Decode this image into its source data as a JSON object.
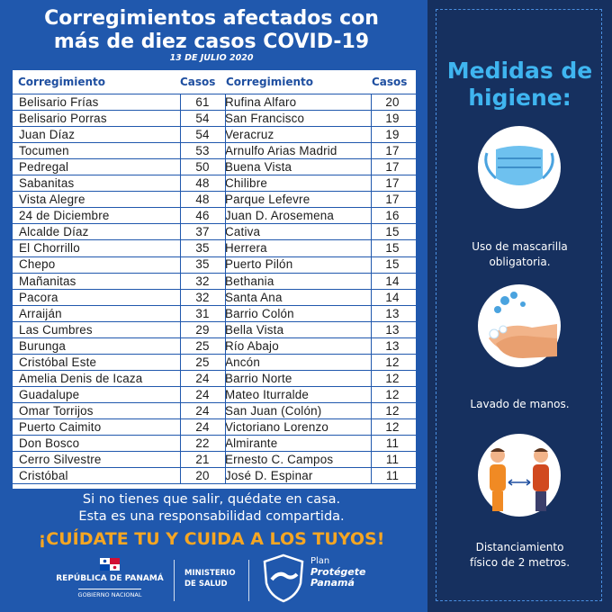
{
  "header": {
    "title_line1": "Corregimientos afectados con",
    "title_line2": "más de diez casos COVID-19",
    "date": "13 DE JULIO 2020"
  },
  "table": {
    "col_name": "Corregimiento",
    "col_cases": "Casos",
    "left": [
      [
        "Belisario Frías",
        "61"
      ],
      [
        "Belisario Porras",
        "54"
      ],
      [
        "Juan Díaz",
        "54"
      ],
      [
        "Tocumen",
        "53"
      ],
      [
        "Pedregal",
        "50"
      ],
      [
        "Sabanitas",
        "48"
      ],
      [
        "Vista Alegre",
        "48"
      ],
      [
        "24 de Diciembre",
        "46"
      ],
      [
        "Alcalde Díaz",
        "37"
      ],
      [
        "El Chorrillo",
        "35"
      ],
      [
        "Chepo",
        "35"
      ],
      [
        "Mañanitas",
        "32"
      ],
      [
        "Pacora",
        "32"
      ],
      [
        "Arraiján",
        "31"
      ],
      [
        "Las Cumbres",
        "29"
      ],
      [
        "Burunga",
        "25"
      ],
      [
        "Cristóbal Este",
        "25"
      ],
      [
        "Amelia Denis de Icaza",
        "24"
      ],
      [
        "Guadalupe",
        "24"
      ],
      [
        "Omar Torrijos",
        "24"
      ],
      [
        "Puerto Caimito",
        "24"
      ],
      [
        "Don Bosco",
        "22"
      ],
      [
        "Cerro Silvestre",
        "21"
      ],
      [
        "Cristóbal",
        "20"
      ]
    ],
    "right": [
      [
        "Rufina Alfaro",
        "20"
      ],
      [
        "San Francisco",
        "19"
      ],
      [
        "Veracruz",
        "19"
      ],
      [
        "Arnulfo Arias Madrid",
        "17"
      ],
      [
        "Buena Vista",
        "17"
      ],
      [
        "Chilibre",
        "17"
      ],
      [
        "Parque Lefevre",
        "17"
      ],
      [
        "Juan D. Arosemena",
        "16"
      ],
      [
        "Cativa",
        "15"
      ],
      [
        "Herrera",
        "15"
      ],
      [
        "Puerto Pilón",
        "15"
      ],
      [
        "Bethania",
        "14"
      ],
      [
        "Santa Ana",
        "14"
      ],
      [
        "Barrio Colón",
        "13"
      ],
      [
        "Bella Vista",
        "13"
      ],
      [
        "Río Abajo",
        "13"
      ],
      [
        "Ancón",
        "12"
      ],
      [
        "Barrio Norte",
        "12"
      ],
      [
        "Mateo Iturralde",
        "12"
      ],
      [
        "San Juan (Colón)",
        "12"
      ],
      [
        "Victoriano Lorenzo",
        "12"
      ],
      [
        "Almirante",
        "11"
      ],
      [
        "Ernesto C. Campos",
        "11"
      ],
      [
        "José D. Espinar",
        "11"
      ]
    ]
  },
  "message": {
    "line1": "Si no tienes que salir, quédate en casa.",
    "line2": "Esta es una responsabilidad compartida.",
    "slogan": "¡CUÍDATE TU Y CUIDA A LOS TUYOS!"
  },
  "footer": {
    "republic": "REPÚBLICA DE PANAMÁ",
    "gov": "GOBIERNO NACIONAL",
    "ministry_line1": "MINISTERIO",
    "ministry_line2": "DE SALUD",
    "plan_line1": "Plan",
    "plan_line2": "Protégete",
    "plan_line3": "Panamá"
  },
  "sidebar": {
    "title_line1": "Medidas de",
    "title_line2": "higiene:",
    "items": [
      {
        "icon": "mask-icon",
        "line1": "Uso de mascarilla",
        "line2": "obligatoria."
      },
      {
        "icon": "handwash-icon",
        "line1": "Lavado de manos.",
        "line2": ""
      },
      {
        "icon": "distance-icon",
        "line1": "Distanciamiento",
        "line2": "físico de 2 metros."
      }
    ]
  },
  "colors": {
    "left_bg": "#2058ad",
    "right_bg": "#16305f",
    "accent": "#3fb5f0",
    "slogan": "#f5a623"
  }
}
